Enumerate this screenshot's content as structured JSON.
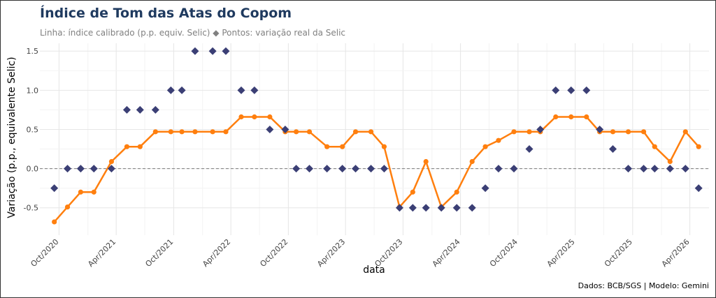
{
  "title": "Índice de Tom das Atas do Copom",
  "subtitle": "Linha: índice calibrado (p.p. equiv. Selic)  ◆ Pontos: variação real da Selic",
  "caption": "Dados: BCB/SGS | Modelo: Gemini",
  "chart_data": {
    "type": "line",
    "xlabel": "data",
    "ylabel": "Variação (p.p., equivalente Selic)",
    "x_tick_labels": [
      "Oct/2020",
      "Apr/2021",
      "Oct/2021",
      "Apr/2022",
      "Oct/2022",
      "Apr/2023",
      "Oct/2023",
      "Apr/2024",
      "Oct/2024",
      "Apr/2025",
      "Oct/2025",
      "Apr/2026"
    ],
    "x_range": [
      "2020-08-01",
      "2026-06-01"
    ],
    "y_tick_labels": [
      "-0.5",
      "0.0",
      "0.5",
      "1.0",
      "1.5"
    ],
    "ylim": [
      -0.85,
      1.6
    ],
    "grid": true,
    "zero_line": "dashed",
    "series": [
      {
        "kind": "line",
        "color": "#ff7f0e",
        "points": [
          {
            "x": "2020-09-16",
            "y": -0.68
          },
          {
            "x": "2020-10-28",
            "y": -0.49
          },
          {
            "x": "2020-12-09",
            "y": -0.3
          },
          {
            "x": "2021-01-20",
            "y": -0.3
          },
          {
            "x": "2021-03-17",
            "y": 0.09
          },
          {
            "x": "2021-05-05",
            "y": 0.28
          },
          {
            "x": "2021-06-16",
            "y": 0.28
          },
          {
            "x": "2021-08-04",
            "y": 0.47
          },
          {
            "x": "2021-09-22",
            "y": 0.47
          },
          {
            "x": "2021-10-27",
            "y": 0.47
          },
          {
            "x": "2021-12-08",
            "y": 0.47
          },
          {
            "x": "2022-02-02",
            "y": 0.47
          },
          {
            "x": "2022-03-16",
            "y": 0.47
          },
          {
            "x": "2022-05-04",
            "y": 0.66
          },
          {
            "x": "2022-06-15",
            "y": 0.66
          },
          {
            "x": "2022-08-03",
            "y": 0.66
          },
          {
            "x": "2022-09-21",
            "y": 0.47
          },
          {
            "x": "2022-10-26",
            "y": 0.47
          },
          {
            "x": "2022-12-07",
            "y": 0.47
          },
          {
            "x": "2023-02-01",
            "y": 0.28
          },
          {
            "x": "2023-03-22",
            "y": 0.28
          },
          {
            "x": "2023-05-03",
            "y": 0.47
          },
          {
            "x": "2023-06-21",
            "y": 0.47
          },
          {
            "x": "2023-08-02",
            "y": 0.28
          },
          {
            "x": "2023-09-20",
            "y": -0.49
          },
          {
            "x": "2023-11-01",
            "y": -0.3
          },
          {
            "x": "2023-12-13",
            "y": 0.09
          },
          {
            "x": "2024-01-31",
            "y": -0.49
          },
          {
            "x": "2024-03-20",
            "y": -0.3
          },
          {
            "x": "2024-05-08",
            "y": 0.09
          },
          {
            "x": "2024-06-19",
            "y": 0.28
          },
          {
            "x": "2024-07-31",
            "y": 0.36
          },
          {
            "x": "2024-09-18",
            "y": 0.47
          },
          {
            "x": "2024-11-06",
            "y": 0.47
          },
          {
            "x": "2024-12-11",
            "y": 0.47
          },
          {
            "x": "2025-01-29",
            "y": 0.66
          },
          {
            "x": "2025-03-19",
            "y": 0.66
          },
          {
            "x": "2025-05-07",
            "y": 0.66
          },
          {
            "x": "2025-06-18",
            "y": 0.47
          },
          {
            "x": "2025-07-30",
            "y": 0.47
          },
          {
            "x": "2025-09-17",
            "y": 0.47
          },
          {
            "x": "2025-11-05",
            "y": 0.47
          },
          {
            "x": "2025-12-10",
            "y": 0.28
          },
          {
            "x": "2026-01-28",
            "y": 0.09
          },
          {
            "x": "2026-03-18",
            "y": 0.47
          },
          {
            "x": "2026-04-29",
            "y": 0.28
          }
        ]
      },
      {
        "kind": "scatter",
        "marker": "diamond",
        "color": "#3b3f75",
        "points": [
          {
            "x": "2020-09-16",
            "y": -0.25
          },
          {
            "x": "2020-10-28",
            "y": 0.0
          },
          {
            "x": "2020-12-09",
            "y": 0.0
          },
          {
            "x": "2021-01-20",
            "y": 0.0
          },
          {
            "x": "2021-03-17",
            "y": 0.0
          },
          {
            "x": "2021-05-05",
            "y": 0.75
          },
          {
            "x": "2021-06-16",
            "y": 0.75
          },
          {
            "x": "2021-08-04",
            "y": 0.75
          },
          {
            "x": "2021-09-22",
            "y": 1.0
          },
          {
            "x": "2021-10-27",
            "y": 1.0
          },
          {
            "x": "2021-12-08",
            "y": 1.5
          },
          {
            "x": "2022-02-02",
            "y": 1.5
          },
          {
            "x": "2022-03-16",
            "y": 1.5
          },
          {
            "x": "2022-05-04",
            "y": 1.0
          },
          {
            "x": "2022-06-15",
            "y": 1.0
          },
          {
            "x": "2022-08-03",
            "y": 0.5
          },
          {
            "x": "2022-09-21",
            "y": 0.5
          },
          {
            "x": "2022-10-26",
            "y": 0.0
          },
          {
            "x": "2022-12-07",
            "y": 0.0
          },
          {
            "x": "2023-02-01",
            "y": 0.0
          },
          {
            "x": "2023-03-22",
            "y": 0.0
          },
          {
            "x": "2023-05-03",
            "y": 0.0
          },
          {
            "x": "2023-06-21",
            "y": 0.0
          },
          {
            "x": "2023-08-02",
            "y": 0.0
          },
          {
            "x": "2023-09-20",
            "y": -0.5
          },
          {
            "x": "2023-11-01",
            "y": -0.5
          },
          {
            "x": "2023-12-13",
            "y": -0.5
          },
          {
            "x": "2024-01-31",
            "y": -0.5
          },
          {
            "x": "2024-03-20",
            "y": -0.5
          },
          {
            "x": "2024-05-08",
            "y": -0.5
          },
          {
            "x": "2024-06-19",
            "y": -0.25
          },
          {
            "x": "2024-07-31",
            "y": 0.0
          },
          {
            "x": "2024-09-18",
            "y": 0.0
          },
          {
            "x": "2024-11-06",
            "y": 0.25
          },
          {
            "x": "2024-12-11",
            "y": 0.5
          },
          {
            "x": "2025-01-29",
            "y": 1.0
          },
          {
            "x": "2025-03-19",
            "y": 1.0
          },
          {
            "x": "2025-05-07",
            "y": 1.0
          },
          {
            "x": "2025-06-18",
            "y": 0.5
          },
          {
            "x": "2025-07-30",
            "y": 0.25
          },
          {
            "x": "2025-09-17",
            "y": 0.0
          },
          {
            "x": "2025-11-05",
            "y": 0.0
          },
          {
            "x": "2025-12-10",
            "y": 0.0
          },
          {
            "x": "2026-01-28",
            "y": 0.0
          },
          {
            "x": "2026-03-18",
            "y": 0.0
          },
          {
            "x": "2026-04-29",
            "y": -0.25
          }
        ]
      }
    ]
  }
}
